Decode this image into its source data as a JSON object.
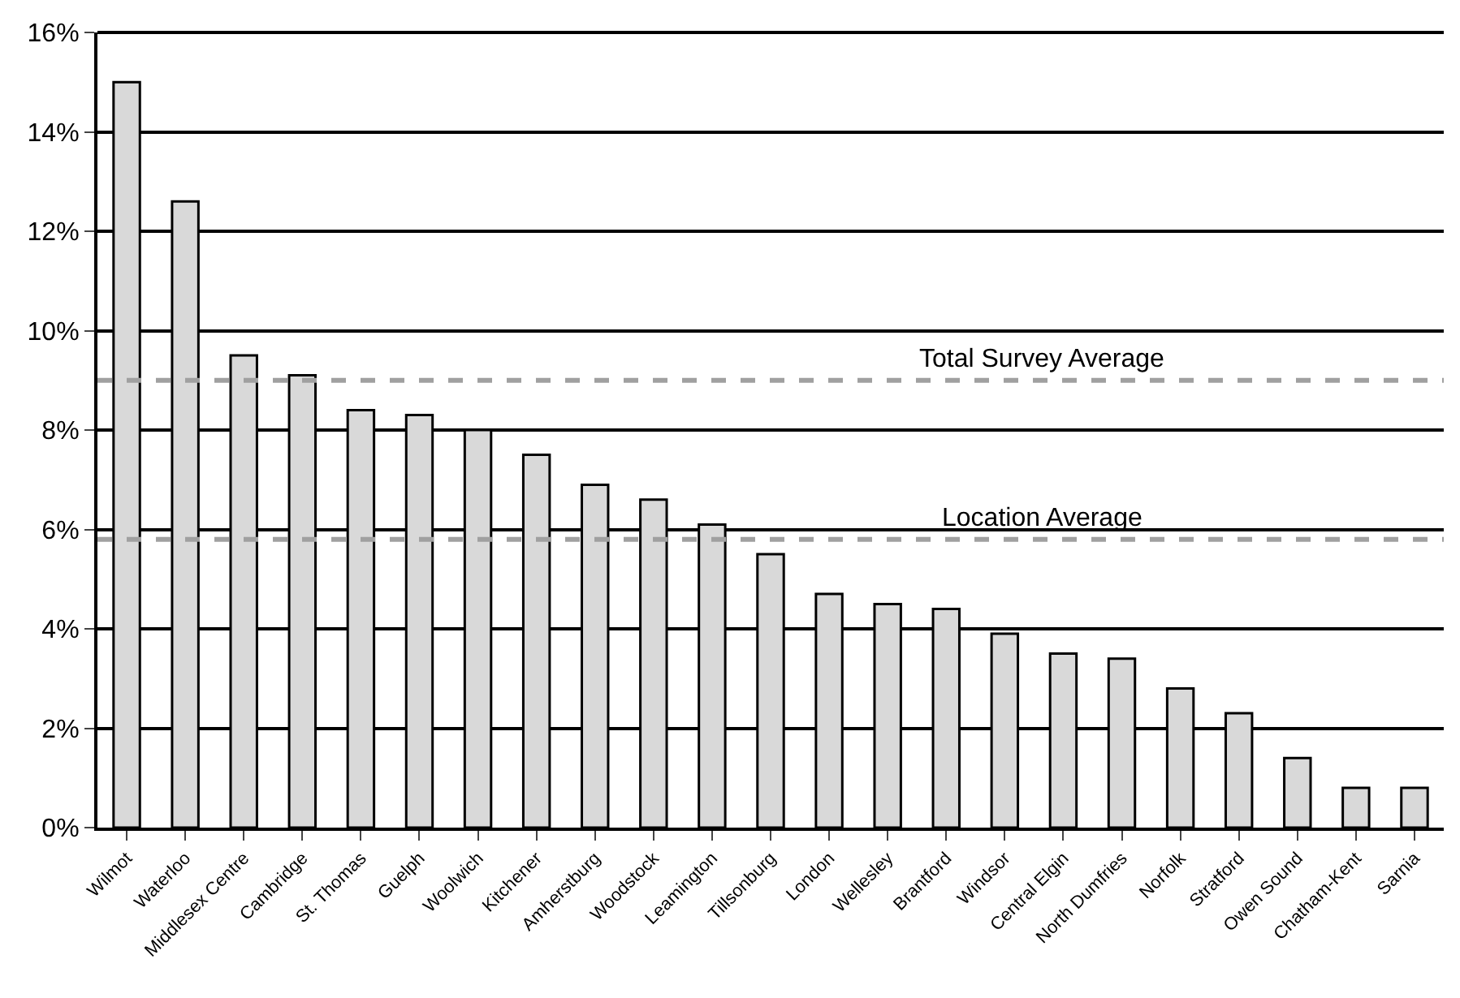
{
  "chart_data": {
    "type": "bar",
    "categories": [
      "Wilmot",
      "Waterloo",
      "Middlesex Centre",
      "Cambridge",
      "St. Thomas",
      "Guelph",
      "Woolwich",
      "Kitchener",
      "Amherstburg",
      "Woodstock",
      "Leamington",
      "Tillsonburg",
      "London",
      "Wellesley",
      "Brantford",
      "Windsor",
      "Central Elgin",
      "North Dumfries",
      "Norfolk",
      "Stratford",
      "Owen Sound",
      "Chatham-Kent",
      "Sarnia"
    ],
    "values": [
      15.0,
      12.6,
      9.5,
      9.1,
      8.4,
      8.3,
      8.0,
      7.5,
      6.9,
      6.6,
      6.1,
      5.5,
      4.7,
      4.5,
      4.4,
      3.9,
      3.5,
      3.4,
      2.8,
      2.3,
      1.4,
      0.8,
      0.8
    ],
    "color": "#d9d9d9",
    "ylim": [
      0,
      16
    ],
    "yticks": [
      {
        "value": 0,
        "label": "0%"
      },
      {
        "value": 2,
        "label": "2%"
      },
      {
        "value": 4,
        "label": "4%"
      },
      {
        "value": 6,
        "label": "6%"
      },
      {
        "value": 8,
        "label": "8%"
      },
      {
        "value": 10,
        "label": "10%"
      },
      {
        "value": 12,
        "label": "12%"
      },
      {
        "value": 14,
        "label": "14%"
      },
      {
        "value": 16,
        "label": "16%"
      }
    ],
    "grid": "y",
    "ref_lines": [
      {
        "axis": "y",
        "value": 9.0,
        "label": "Total Survey Average",
        "color": "#a0a0a0",
        "line_style": "dashed"
      },
      {
        "axis": "y",
        "value": 5.8,
        "label": "Location Average",
        "color": "#a0a0a0",
        "line_style": "dashed"
      }
    ]
  }
}
